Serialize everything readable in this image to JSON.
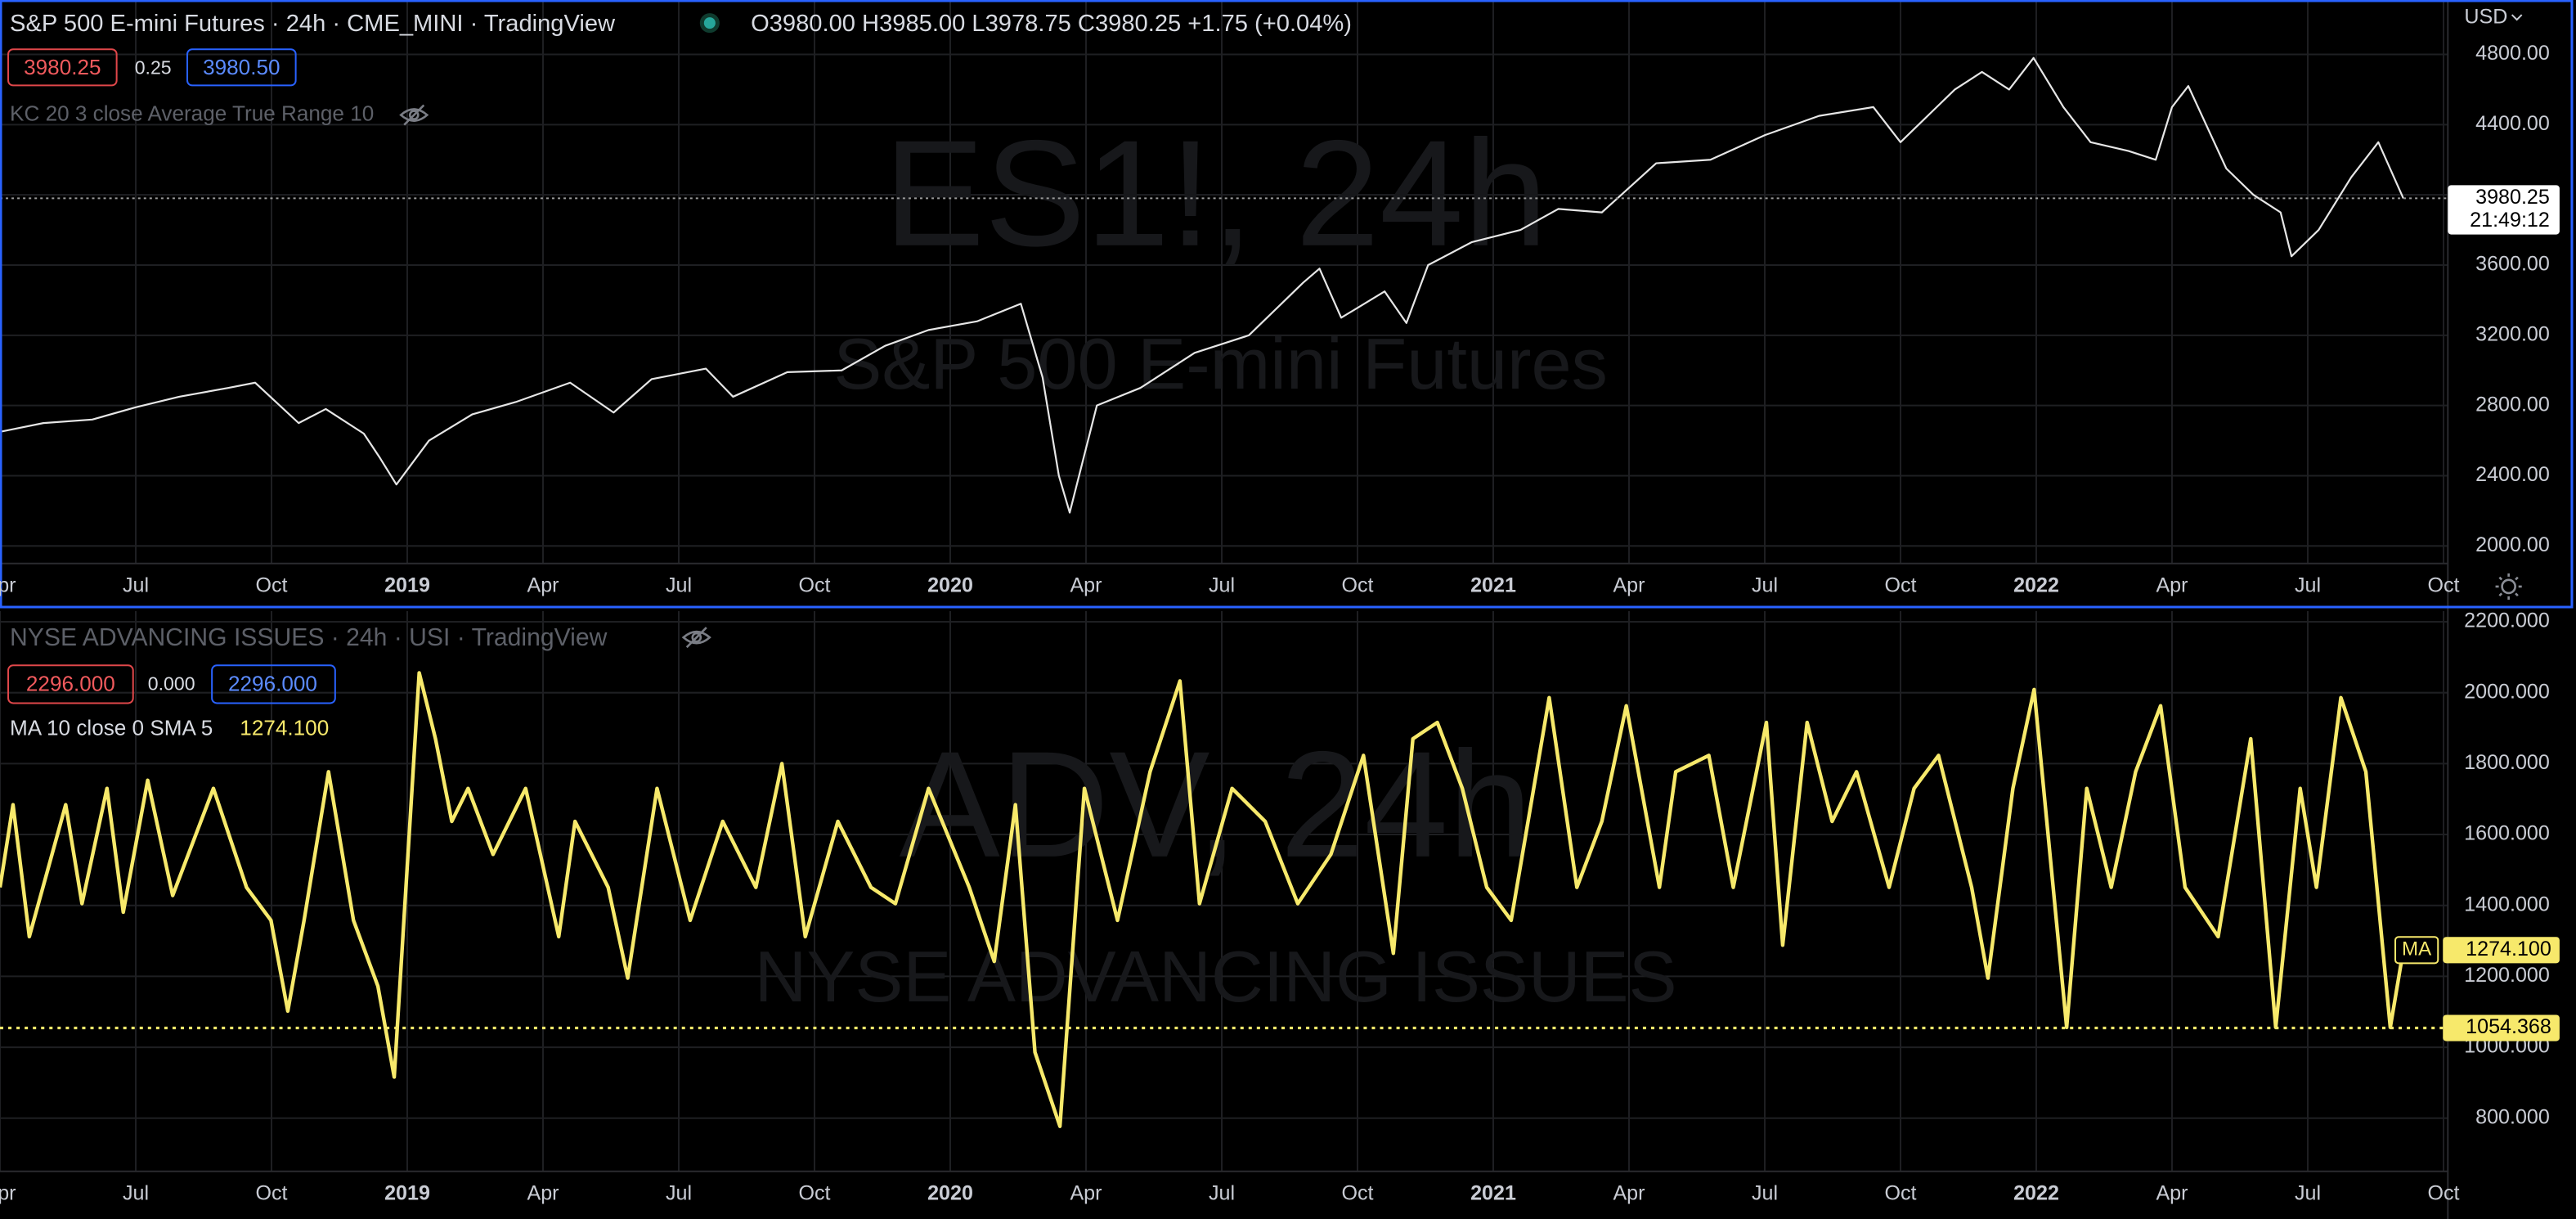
{
  "chart_data": [
    {
      "type": "line",
      "title": "S&P 500 E-mini Futures · 24h · CME_MINI · TradingView",
      "ohlc": "O3980.00 H3985.00 L3978.75 C3980.25 +1.75 (+0.04%)",
      "buttons": [
        "3980.25",
        "0.25",
        "3980.50"
      ],
      "indicator": "KC 20 3 close Average True Range 10",
      "watermark": [
        "ES1!, 24h",
        "S&P 500 E-mini Futures"
      ],
      "currency": "USD",
      "countdown": "21:49:12",
      "grid": true,
      "x": [
        2018.25,
        2018.33,
        2018.42,
        2018.5,
        2018.58,
        2018.67,
        2018.72,
        2018.8,
        2018.85,
        2018.92,
        2018.95,
        2018.98,
        2019.04,
        2019.12,
        2019.2,
        2019.3,
        2019.38,
        2019.45,
        2019.55,
        2019.6,
        2019.7,
        2019.8,
        2019.88,
        2019.96,
        2020.05,
        2020.13,
        2020.17,
        2020.2,
        2020.22,
        2020.27,
        2020.35,
        2020.45,
        2020.55,
        2020.65,
        2020.68,
        2020.72,
        2020.8,
        2020.84,
        2020.88,
        2020.96,
        2021.05,
        2021.12,
        2021.2,
        2021.3,
        2021.4,
        2021.5,
        2021.6,
        2021.7,
        2021.75,
        2021.85,
        2021.9,
        2021.95,
        2021.995,
        2022.05,
        2022.1,
        2022.17,
        2022.22,
        2022.25,
        2022.28,
        2022.35,
        2022.4,
        2022.45,
        2022.47,
        2022.52,
        2022.58,
        2022.63,
        2022.676
      ],
      "series": [
        {
          "color": "#e6e6e6",
          "values": [
            2650,
            2700,
            2720,
            2790,
            2850,
            2900,
            2930,
            2700,
            2780,
            2640,
            2500,
            2350,
            2600,
            2750,
            2820,
            2930,
            2760,
            2950,
            3010,
            2850,
            2990,
            3000,
            3140,
            3230,
            3280,
            3380,
            2960,
            2400,
            2190,
            2800,
            2900,
            3100,
            3200,
            3500,
            3580,
            3300,
            3450,
            3270,
            3600,
            3730,
            3800,
            3920,
            3900,
            4180,
            4200,
            4340,
            4450,
            4500,
            4300,
            4600,
            4700,
            4600,
            4780,
            4500,
            4300,
            4250,
            4200,
            4500,
            4620,
            4150,
            4000,
            3900,
            3650,
            3800,
            4100,
            4300,
            3980.25
          ]
        }
      ],
      "xlim": [
        2018.25,
        2022.758
      ],
      "xticks": [
        {
          "value": 2018.25,
          "label": "Apr"
        },
        {
          "value": 2018.5,
          "label": "Jul"
        },
        {
          "value": 2018.75,
          "label": "Oct"
        },
        {
          "value": 2019,
          "label": "2019"
        },
        {
          "value": 2019.25,
          "label": "Apr"
        },
        {
          "value": 2019.5,
          "label": "Jul"
        },
        {
          "value": 2019.75,
          "label": "Oct"
        },
        {
          "value": 2020,
          "label": "2020"
        },
        {
          "value": 2020.25,
          "label": "Apr"
        },
        {
          "value": 2020.5,
          "label": "Jul"
        },
        {
          "value": 2020.75,
          "label": "Oct"
        },
        {
          "value": 2021,
          "label": "2021"
        },
        {
          "value": 2021.25,
          "label": "Apr"
        },
        {
          "value": 2021.5,
          "label": "Jul"
        },
        {
          "value": 2021.75,
          "label": "Oct"
        },
        {
          "value": 2022,
          "label": "2022"
        },
        {
          "value": 2022.25,
          "label": "Apr"
        },
        {
          "value": 2022.5,
          "label": "Jul"
        },
        {
          "value": 2022.75,
          "label": "Oct"
        }
      ],
      "ylim": [
        1900,
        5110
      ],
      "yticks": [
        {
          "value": 2000,
          "label": "2000.00"
        },
        {
          "value": 2400,
          "label": "2400.00"
        },
        {
          "value": 2800,
          "label": "2800.00"
        },
        {
          "value": 3200,
          "label": "3200.00"
        },
        {
          "value": 3600,
          "label": "3600.00"
        },
        {
          "value": 4000,
          "label": "4000.00"
        },
        {
          "value": 4400,
          "label": "4400.00"
        },
        {
          "value": 4800,
          "label": "4800.00"
        }
      ]
    },
    {
      "type": "line",
      "title": "NYSE ADVANCING ISSUES · 24h · USI · TradingView",
      "buttons": [
        "2296.000",
        "0.000",
        "2296.000"
      ],
      "indicator": "MA 10 close 0 SMA 5",
      "legend_value": "1274.100",
      "watermark": [
        "ADV, 24h",
        "NYSE ADVANCING ISSUES"
      ],
      "grid": true,
      "hline": 1054.368,
      "x": [
        2018.25,
        2018.274,
        2018.304,
        2018.371,
        2018.401,
        2018.447,
        2018.477,
        2018.522,
        2018.568,
        2018.643,
        2018.704,
        2018.749,
        2018.78,
        2018.81,
        2018.855,
        2018.901,
        2018.946,
        2018.976,
        2019.022,
        2019.052,
        2019.082,
        2019.112,
        2019.158,
        2019.218,
        2019.279,
        2019.309,
        2019.37,
        2019.406,
        2019.46,
        2019.521,
        2019.581,
        2019.642,
        2019.69,
        2019.733,
        2019.793,
        2019.854,
        2019.899,
        2019.96,
        2020.035,
        2020.081,
        2020.12,
        2020.156,
        2020.202,
        2020.247,
        2020.308,
        2020.368,
        2020.423,
        2020.459,
        2020.519,
        2020.58,
        2020.64,
        2020.701,
        2020.761,
        2020.816,
        2020.852,
        2020.897,
        2020.943,
        2020.988,
        2021.033,
        2021.103,
        2021.154,
        2021.2,
        2021.245,
        2021.306,
        2021.336,
        2021.397,
        2021.442,
        2021.503,
        2021.533,
        2021.578,
        2021.624,
        2021.669,
        2021.729,
        2021.775,
        2021.82,
        2021.881,
        2021.911,
        2021.957,
        2021.996,
        2022.056,
        2022.093,
        2022.138,
        2022.183,
        2022.229,
        2022.274,
        2022.335,
        2022.395,
        2022.441,
        2022.486,
        2022.516,
        2022.561,
        2022.607,
        2022.652,
        2022.676
      ],
      "series": [
        {
          "name": "MA",
          "color": "#f7e96b",
          "values": [
            1451,
            1684,
            1312,
            1684,
            1405,
            1730,
            1381,
            1753,
            1428,
            1730,
            1451,
            1358,
            1102,
            1358,
            1777,
            1358,
            1172,
            916,
            2056,
            1870,
            1637,
            1730,
            1544,
            1730,
            1312,
            1637,
            1451,
            1195,
            1730,
            1358,
            1637,
            1451,
            1800,
            1312,
            1637,
            1451,
            1405,
            1730,
            1451,
            1242,
            1684,
            986,
            777,
            1730,
            1358,
            1777,
            2033,
            1405,
            1730,
            1637,
            1405,
            1544,
            1823,
            1265,
            1870,
            1916,
            1730,
            1451,
            1358,
            1986,
            1451,
            1637,
            1963,
            1451,
            1777,
            1823,
            1451,
            1916,
            1288,
            1916,
            1637,
            1777,
            1451,
            1730,
            1823,
            1451,
            1195,
            1730,
            2009,
            1056,
            1730,
            1451,
            1777,
            1963,
            1451,
            1312,
            1870,
            1056,
            1730,
            1451,
            1986,
            1777,
            1056,
            1274.1
          ]
        }
      ],
      "xlim": [
        2018.25,
        2022.758
      ],
      "xticks": [
        {
          "value": 2018.25,
          "label": "Apr"
        },
        {
          "value": 2018.5,
          "label": "Jul"
        },
        {
          "value": 2018.75,
          "label": "Oct"
        },
        {
          "value": 2019,
          "label": "2019"
        },
        {
          "value": 2019.25,
          "label": "Apr"
        },
        {
          "value": 2019.5,
          "label": "Jul"
        },
        {
          "value": 2019.75,
          "label": "Oct"
        },
        {
          "value": 2020,
          "label": "2020"
        },
        {
          "value": 2020.25,
          "label": "Apr"
        },
        {
          "value": 2020.5,
          "label": "Jul"
        },
        {
          "value": 2020.75,
          "label": "Oct"
        },
        {
          "value": 2021,
          "label": "2021"
        },
        {
          "value": 2021.25,
          "label": "Apr"
        },
        {
          "value": 2021.5,
          "label": "Jul"
        },
        {
          "value": 2021.75,
          "label": "Oct"
        },
        {
          "value": 2022,
          "label": "2022"
        },
        {
          "value": 2022.25,
          "label": "Apr"
        },
        {
          "value": 2022.5,
          "label": "Jul"
        },
        {
          "value": 2022.75,
          "label": "Oct"
        }
      ],
      "ylim": [
        650,
        2230
      ],
      "yticks": [
        {
          "value": 800,
          "label": "800.000"
        },
        {
          "value": 1000,
          "label": "1000.000"
        },
        {
          "value": 1200,
          "label": "1200.000"
        },
        {
          "value": 1400,
          "label": "1400.000"
        },
        {
          "value": 1600,
          "label": "1600.000"
        },
        {
          "value": 1800,
          "label": "1800.000"
        },
        {
          "value": 2000,
          "label": "2000.000"
        },
        {
          "value": 2200,
          "label": "2200.000"
        }
      ]
    }
  ]
}
